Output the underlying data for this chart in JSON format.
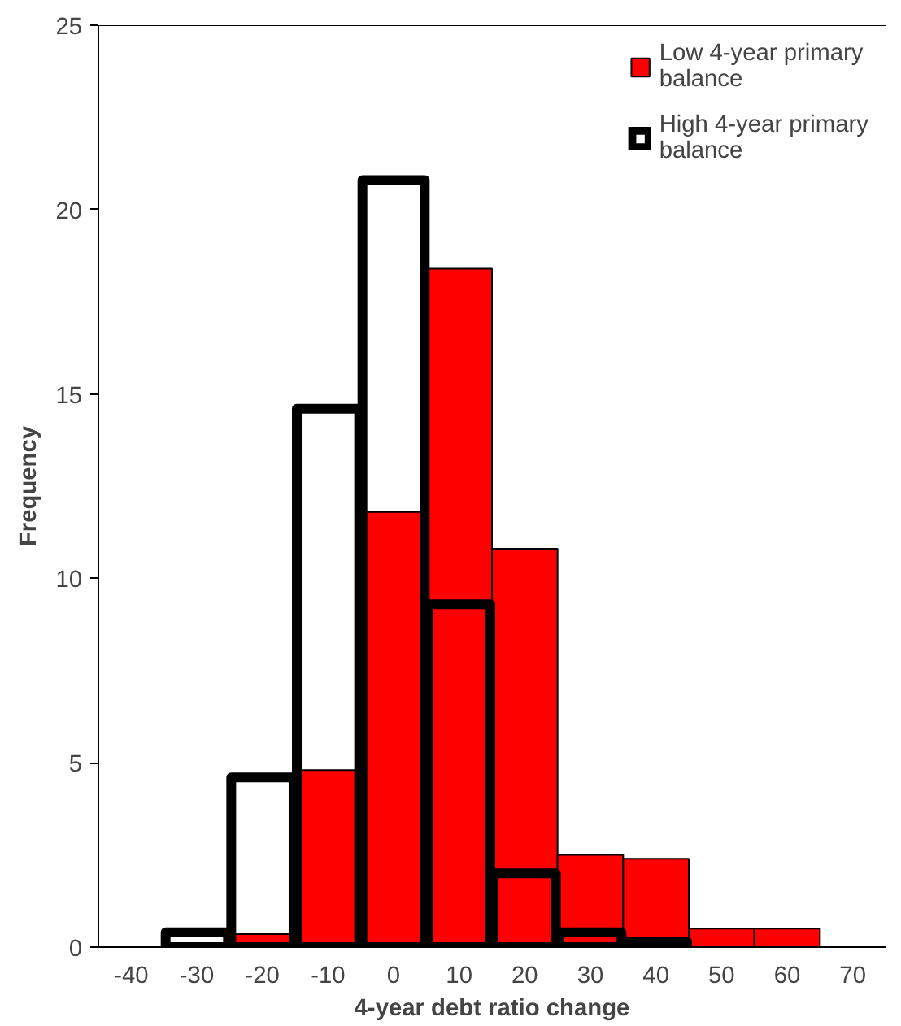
{
  "chart_data": {
    "type": "bar",
    "xlabel": "4-year debt ratio change",
    "ylabel": "Frequency",
    "categories": [
      "-40",
      "-30",
      "-20",
      "-10",
      "0",
      "10",
      "20",
      "30",
      "40",
      "50",
      "60",
      "70"
    ],
    "ylim": [
      0,
      25
    ],
    "yticks": [
      0,
      5,
      10,
      15,
      20,
      25
    ],
    "grid": false,
    "legend": "top right",
    "series": [
      {
        "name": "Low 4-year primary balance",
        "color": "#ff0000",
        "values": [
          null,
          null,
          0.35,
          4.8,
          11.8,
          18.4,
          10.8,
          2.5,
          2.4,
          0.5,
          0.5,
          null
        ]
      },
      {
        "name": "High 4-year primary balance",
        "color": "#000000",
        "values": [
          null,
          0.4,
          4.6,
          14.6,
          20.8,
          9.3,
          2.0,
          0.4,
          0.15,
          null,
          null,
          null
        ]
      }
    ]
  }
}
